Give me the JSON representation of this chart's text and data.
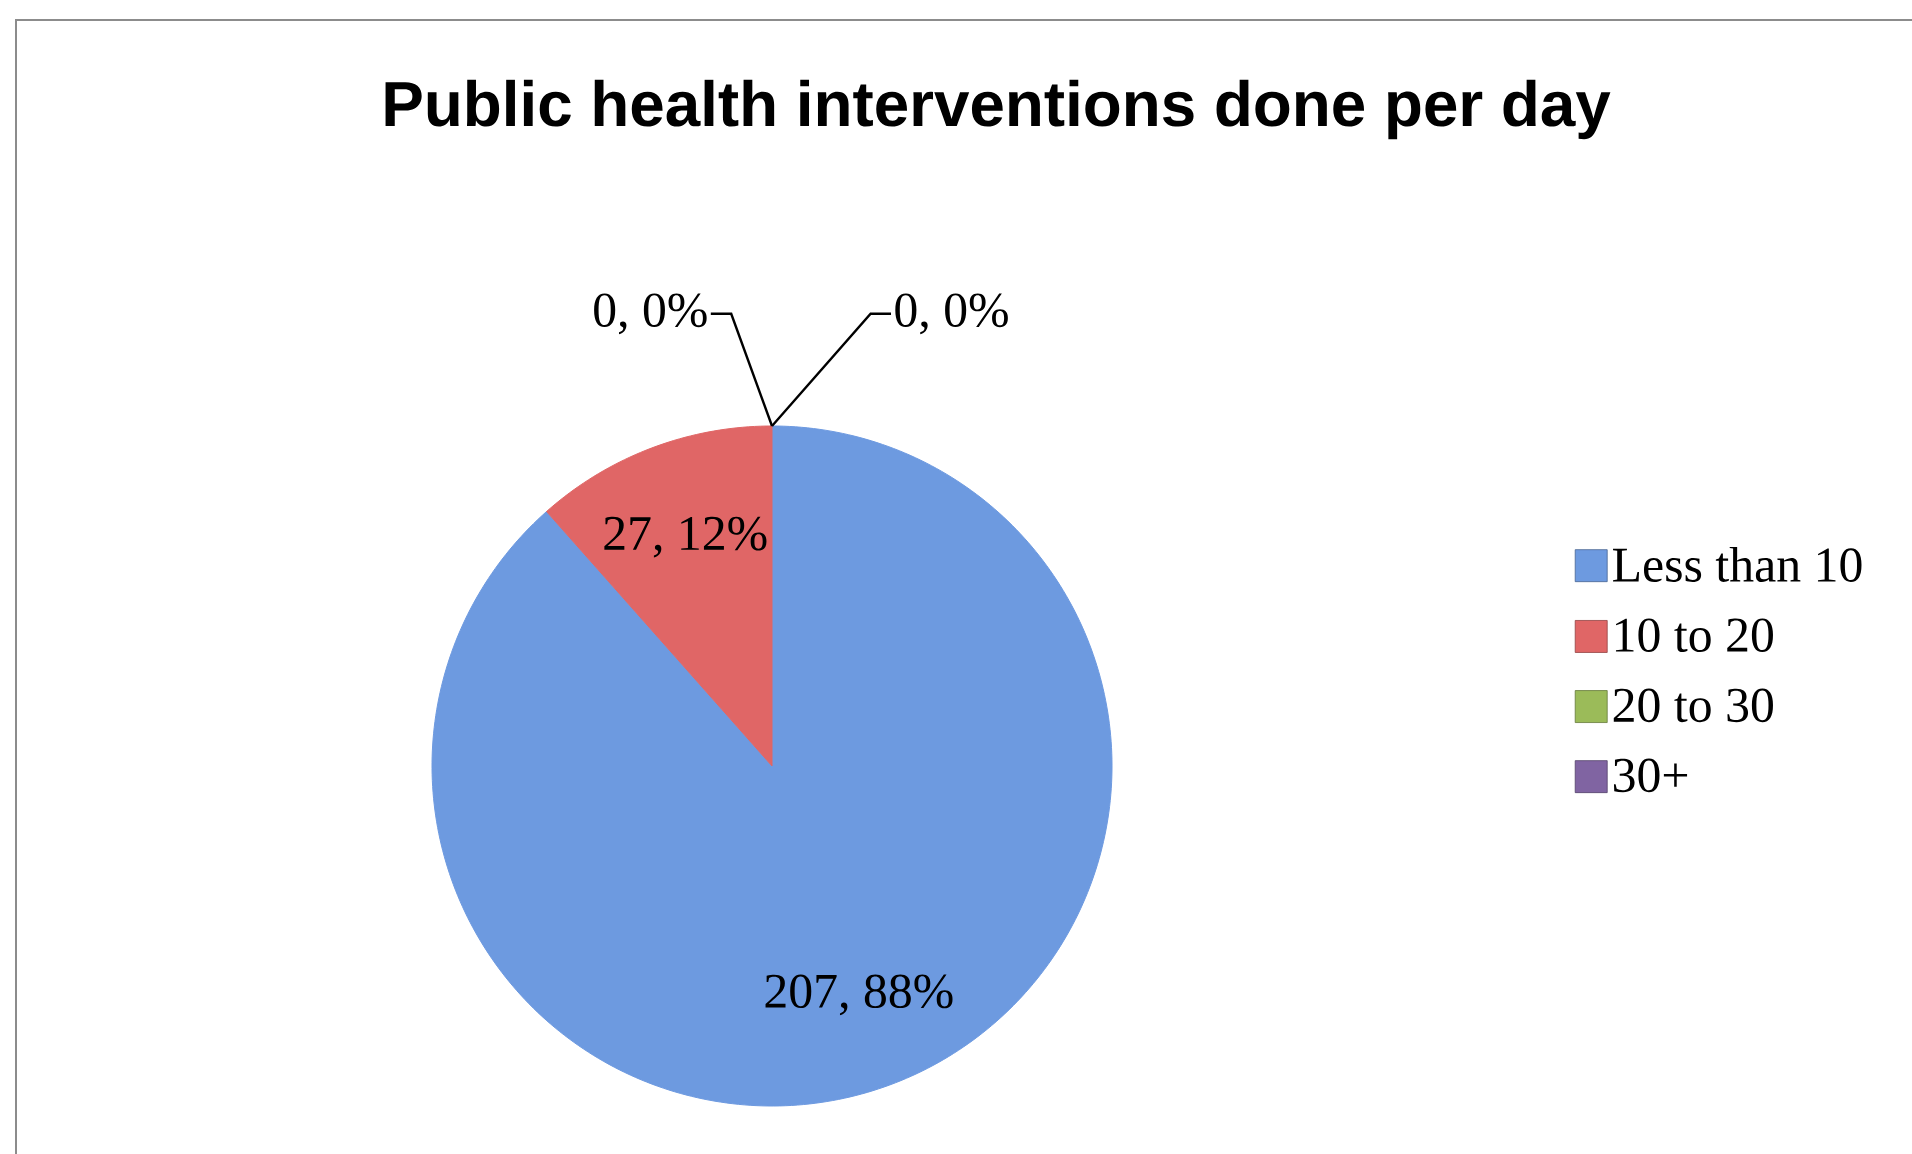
{
  "chart_data": {
    "type": "pie",
    "title": "Public health interventions done per day",
    "categories": [
      "Less than 10",
      "10 to 20",
      "20 to 30",
      "30+"
    ],
    "values": [
      207,
      27,
      0,
      0
    ],
    "colors": [
      "#6d9ae0",
      "#e06666",
      "#9bbb59",
      "#8064a2"
    ],
    "value_labels": [
      "207, 88%",
      "27, 12%",
      "0, 0%",
      "0, 0%"
    ],
    "legend": "right"
  }
}
